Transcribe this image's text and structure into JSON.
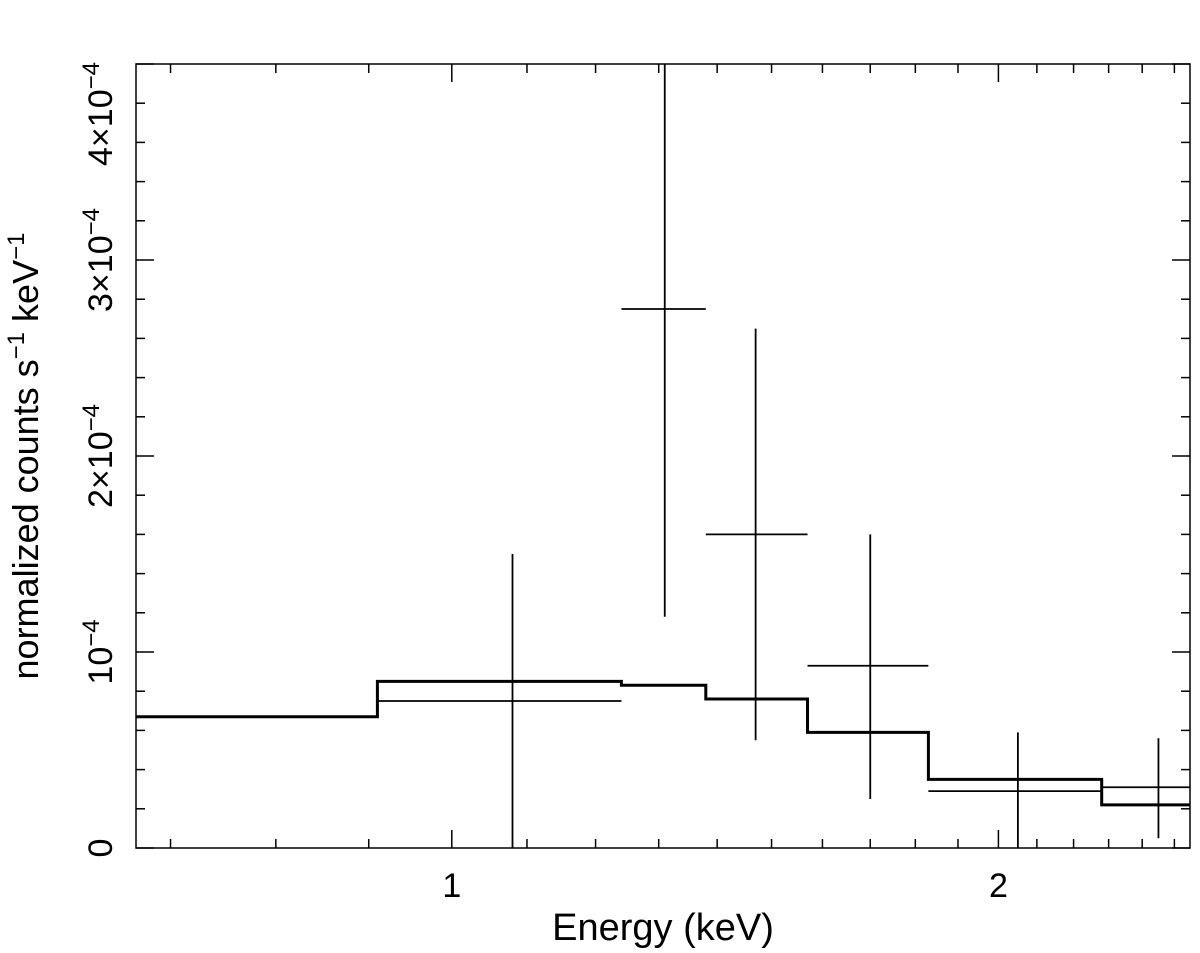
{
  "chart_data": {
    "type": "step-errorbar",
    "xlabel": "Energy (keV)",
    "ylabel": {
      "base": "normalized counts s",
      "sup1": "−1",
      "mid": " keV",
      "sup2": "−1"
    },
    "x_scale": "log",
    "xlim": [
      0.67,
      2.55
    ],
    "ylim": [
      0,
      0.0004
    ],
    "x_ticks": [
      {
        "value": 1,
        "label": "1"
      },
      {
        "value": 2,
        "label": "2"
      }
    ],
    "y_ticks": [
      {
        "value": 0,
        "label": "0",
        "base": "",
        "exp": ""
      },
      {
        "value": 0.0001,
        "label": "10⁻⁴",
        "base": "10",
        "exp": "−4"
      },
      {
        "value": 0.0002,
        "label": "2×10⁻⁴",
        "base": "2×10",
        "exp": "−4"
      },
      {
        "value": 0.0003,
        "label": "3×10⁻⁴",
        "base": "3×10",
        "exp": "−4"
      },
      {
        "value": 0.0004,
        "label": "4×10⁻⁴",
        "base": "4×10",
        "exp": "−4"
      }
    ],
    "series": [
      {
        "kind": "data",
        "points": [
          {
            "x": 1.08,
            "xlo": 0.91,
            "xhi": 1.24,
            "y": 7.5e-05,
            "ylo": 0.0,
            "yhi": 0.00015
          },
          {
            "x": 1.31,
            "xlo": 1.24,
            "xhi": 1.38,
            "y": 0.000275,
            "ylo": 0.000118,
            "yhi": 0.0004
          },
          {
            "x": 1.47,
            "xlo": 1.38,
            "xhi": 1.57,
            "y": 0.00016,
            "ylo": 5.5e-05,
            "yhi": 0.000265
          },
          {
            "x": 1.7,
            "xlo": 1.57,
            "xhi": 1.83,
            "y": 9.3e-05,
            "ylo": 2.5e-05,
            "yhi": 0.00016
          },
          {
            "x": 2.05,
            "xlo": 1.83,
            "xhi": 2.28,
            "y": 2.9e-05,
            "ylo": 0.0,
            "yhi": 5.9e-05
          },
          {
            "x": 2.45,
            "xlo": 2.28,
            "xhi": 2.55,
            "y": 3.1e-05,
            "ylo": 5e-06,
            "yhi": 5.6e-05
          }
        ]
      },
      {
        "kind": "model",
        "steps": [
          {
            "xlo": 0.67,
            "xhi": 0.91,
            "y": 6.7e-05
          },
          {
            "xlo": 0.91,
            "xhi": 1.24,
            "y": 8.5e-05
          },
          {
            "xlo": 1.24,
            "xhi": 1.38,
            "y": 8.3e-05
          },
          {
            "xlo": 1.38,
            "xhi": 1.57,
            "y": 7.6e-05
          },
          {
            "xlo": 1.57,
            "xhi": 1.83,
            "y": 5.9e-05
          },
          {
            "xlo": 1.83,
            "xhi": 2.28,
            "y": 3.5e-05
          },
          {
            "xlo": 2.28,
            "xhi": 2.55,
            "y": 2.2e-05
          }
        ]
      }
    ]
  }
}
